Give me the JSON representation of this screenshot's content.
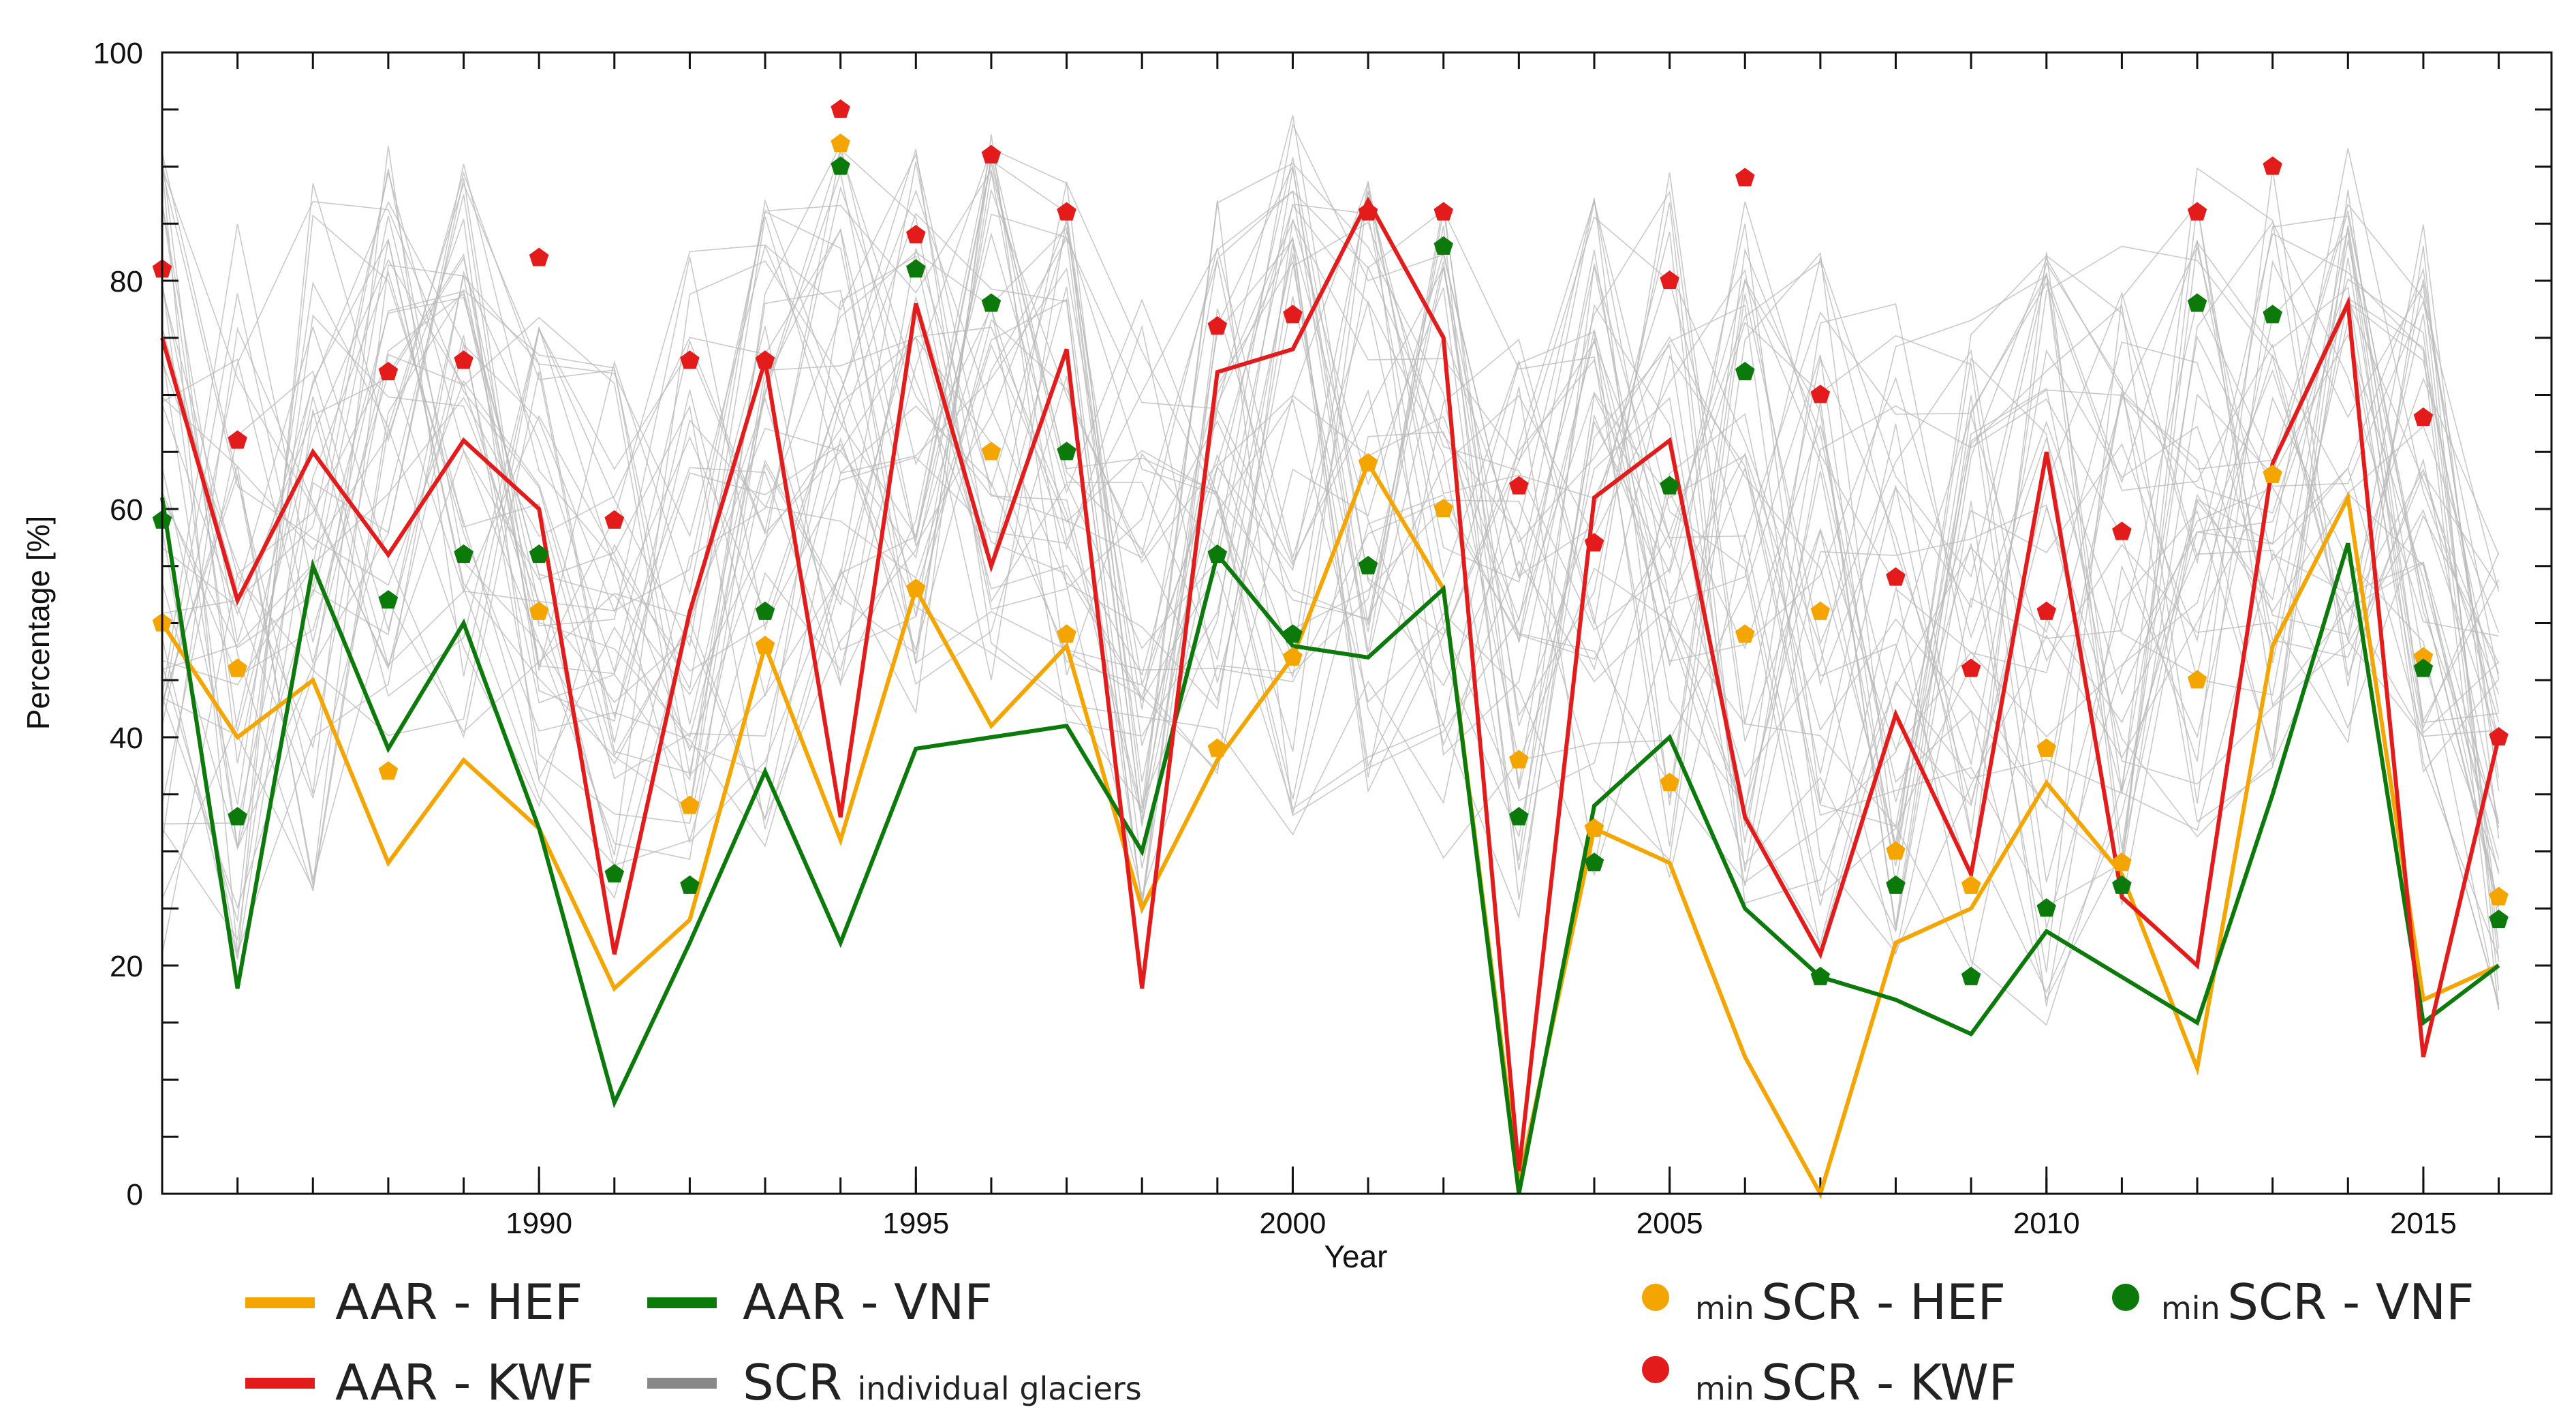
{
  "chart_data": {
    "type": "line",
    "title": "",
    "xlabel": "Year",
    "ylabel": "Percentage [%]",
    "xlim": [
      1985,
      2016.7
    ],
    "ylim": [
      0,
      100
    ],
    "x_ticks": [
      1990,
      1995,
      2000,
      2005,
      2010,
      2015
    ],
    "y_ticks": [
      0,
      20,
      40,
      60,
      80,
      100
    ],
    "grid": false,
    "colors": {
      "hef": "#f5a500",
      "vnf": "#0b7a0b",
      "kwf": "#e31b1b",
      "scr": "#b8b8b8"
    },
    "lines": [
      {
        "name": "AAR - HEF",
        "color": "#f5a500",
        "x": [
          1985,
          1986,
          1987,
          1988,
          1989,
          1990,
          1991,
          1992,
          1993,
          1994,
          1995,
          1996,
          1997,
          1998,
          1999,
          2000,
          2001,
          2002,
          2003,
          2004,
          2005,
          2006,
          2007,
          2008,
          2009,
          2010,
          2011,
          2012,
          2013,
          2014,
          2015,
          2016
        ],
        "y": [
          50,
          40,
          45,
          29,
          38,
          32,
          18,
          24,
          48,
          31,
          53,
          41,
          48,
          25,
          38,
          47,
          64,
          53,
          1,
          32,
          29,
          12,
          0,
          22,
          25,
          36,
          28,
          11,
          48,
          61,
          17,
          20
        ]
      },
      {
        "name": "AAR - VNF",
        "color": "#0b7a0b",
        "x": [
          1985,
          1986,
          1987,
          1988,
          1989,
          1990,
          1991,
          1992,
          1993,
          1994,
          1995,
          1996,
          1997,
          1998,
          1999,
          2000,
          2001,
          2002,
          2003,
          2004,
          2005,
          2006,
          2007,
          2008,
          2009,
          2010,
          2011,
          2012,
          2013,
          2014,
          2015,
          2016
        ],
        "y": [
          61,
          18,
          55,
          39,
          50,
          32,
          8,
          22,
          37,
          22,
          39,
          40,
          41,
          30,
          56,
          48,
          47,
          53,
          0,
          34,
          40,
          25,
          19,
          17,
          14,
          23,
          19,
          15,
          35,
          57,
          15,
          20
        ]
      },
      {
        "name": "AAR - KWF",
        "color": "#e31b1b",
        "x": [
          1985,
          1986,
          1987,
          1988,
          1989,
          1990,
          1991,
          1992,
          1993,
          1994,
          1995,
          1996,
          1997,
          1998,
          1999,
          2000,
          2001,
          2002,
          2003,
          2004,
          2005,
          2006,
          2007,
          2008,
          2009,
          2010,
          2011,
          2012,
          2013,
          2014,
          2015,
          2016
        ],
        "y": [
          75,
          52,
          65,
          56,
          66,
          60,
          21,
          51,
          73,
          33,
          78,
          55,
          74,
          18,
          72,
          74,
          87,
          75,
          2,
          61,
          66,
          33,
          21,
          42,
          28,
          65,
          26,
          20,
          64,
          78,
          12,
          40
        ]
      }
    ],
    "points": [
      {
        "name": "minSCR - HEF",
        "color": "#f5a500",
        "x": [
          1985,
          1986,
          1988,
          1989,
          1990,
          1991,
          1992,
          1993,
          1994,
          1995,
          1996,
          1997,
          1999,
          2000,
          2001,
          2002,
          2003,
          2004,
          2005,
          2006,
          2007,
          2008,
          2009,
          2010,
          2011,
          2012,
          2013,
          2015,
          2016
        ],
        "y": [
          50,
          46,
          37,
          56,
          51,
          59,
          34,
          48,
          92,
          53,
          65,
          49,
          39,
          47,
          64,
          60,
          38,
          32,
          36,
          49,
          51,
          30,
          27,
          39,
          29,
          45,
          63,
          47,
          26
        ]
      },
      {
        "name": "minSCR - VNF",
        "color": "#0b7a0b",
        "x": [
          1985,
          1986,
          1988,
          1989,
          1990,
          1991,
          1992,
          1993,
          1994,
          1995,
          1996,
          1997,
          1999,
          2000,
          2001,
          2002,
          2003,
          2004,
          2005,
          2006,
          2007,
          2008,
          2009,
          2010,
          2011,
          2012,
          2013,
          2015,
          2016
        ],
        "y": [
          59,
          33,
          52,
          56,
          56,
          28,
          27,
          51,
          90,
          81,
          78,
          65,
          56,
          49,
          55,
          83,
          33,
          29,
          62,
          72,
          19,
          27,
          19,
          25,
          27,
          78,
          77,
          46,
          24
        ]
      },
      {
        "name": "minSCR - KWF",
        "color": "#e31b1b",
        "x": [
          1985,
          1986,
          1988,
          1989,
          1990,
          1991,
          1992,
          1993,
          1994,
          1995,
          1996,
          1997,
          1999,
          2000,
          2001,
          2002,
          2003,
          2004,
          2005,
          2006,
          2007,
          2008,
          2009,
          2010,
          2011,
          2012,
          2013,
          2015,
          2016
        ],
        "y": [
          81,
          66,
          72,
          73,
          82,
          59,
          73,
          73,
          95,
          84,
          91,
          86,
          76,
          77,
          86,
          86,
          62,
          57,
          80,
          89,
          70,
          54,
          46,
          51,
          58,
          86,
          90,
          68,
          40
        ]
      }
    ],
    "scr_series": {
      "name": "SCR individual glaciers",
      "count": 40,
      "years": [
        1985,
        1986,
        1987,
        1988,
        1989,
        1990,
        1991,
        1992,
        1993,
        1994,
        1995,
        1996,
        1997,
        1998,
        1999,
        2000,
        2001,
        2002,
        2003,
        2004,
        2005,
        2006,
        2007,
        2008,
        2009,
        2010,
        2011,
        2012,
        2013,
        2014,
        2015,
        2016
      ],
      "range_min": [
        18,
        20,
        25,
        38,
        40,
        33,
        25,
        28,
        30,
        40,
        42,
        45,
        40,
        25,
        35,
        30,
        35,
        28,
        24,
        26,
        26,
        24,
        20,
        20,
        17,
        12,
        25,
        30,
        35,
        38,
        35,
        15
      ],
      "range_max": [
        92,
        85,
        94,
        92,
        93,
        78,
        75,
        85,
        87,
        92,
        92,
        93,
        91,
        80,
        88,
        95,
        92,
        88,
        75,
        89,
        90,
        88,
        85,
        78,
        82,
        85,
        85,
        90,
        90,
        93,
        90,
        60
      ]
    },
    "legend": {
      "aar_hef": "AAR - HEF",
      "aar_vnf": "AAR - VNF",
      "aar_kwf": "AAR - KWF",
      "scr_main": "SCR",
      "scr_sub": "individual glaciers",
      "min_prefix": "min",
      "minscr_hef": "SCR - HEF",
      "minscr_vnf": "SCR - VNF",
      "minscr_kwf": "SCR - KWF"
    }
  }
}
